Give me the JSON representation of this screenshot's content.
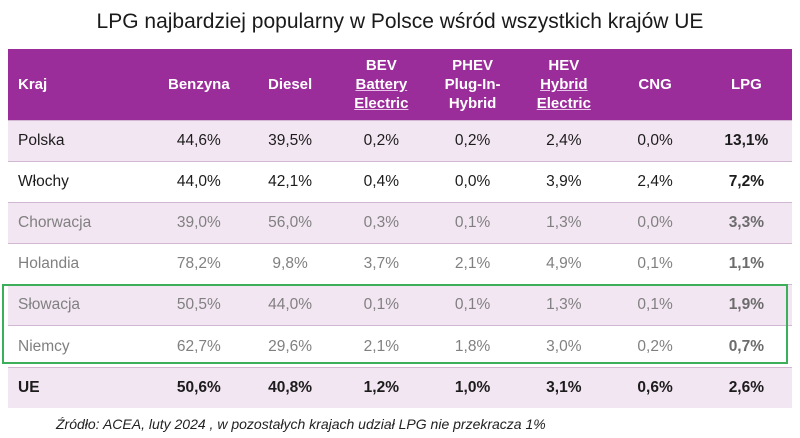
{
  "title": "LPG najbardziej popularny w Polsce wśród wszystkich krajów UE",
  "table": {
    "headers": {
      "kraj": "Kraj",
      "benzyna": "Benzyna",
      "diesel": "Diesel",
      "bev_1": "BEV",
      "bev_2": "Battery",
      "bev_3": "Electric",
      "phev_1": "PHEV",
      "phev_2": "Plug-In-",
      "phev_3": "Hybrid",
      "hev_1": "HEV",
      "hev_2": "Hybrid",
      "hev_3": "Electric",
      "cng": "CNG",
      "lpg": "LPG"
    },
    "rows": [
      {
        "kraj": "Polska",
        "benzyna": "44,6%",
        "diesel": "39,5%",
        "bev": "0,2%",
        "phev": "0,2%",
        "hev": "2,4%",
        "cng": "0,0%",
        "lpg": "13,1%"
      },
      {
        "kraj": "Włochy",
        "benzyna": "44,0%",
        "diesel": "42,1%",
        "bev": "0,4%",
        "phev": "0,0%",
        "hev": "3,9%",
        "cng": "2,4%",
        "lpg": "7,2%"
      },
      {
        "kraj": "Chorwacja",
        "benzyna": "39,0%",
        "diesel": "56,0%",
        "bev": "0,3%",
        "phev": "0,1%",
        "hev": "1,3%",
        "cng": "0,0%",
        "lpg": "3,3%"
      },
      {
        "kraj": "Holandia",
        "benzyna": "78,2%",
        "diesel": "9,8%",
        "bev": "3,7%",
        "phev": "2,1%",
        "hev": "4,9%",
        "cng": "0,1%",
        "lpg": "1,1%"
      },
      {
        "kraj": "Słowacja",
        "benzyna": "50,5%",
        "diesel": "44,0%",
        "bev": "0,1%",
        "phev": "0,1%",
        "hev": "1,3%",
        "cng": "0,1%",
        "lpg": "1,9%"
      },
      {
        "kraj": "Niemcy",
        "benzyna": "62,7%",
        "diesel": "29,6%",
        "bev": "2,1%",
        "phev": "1,8%",
        "hev": "3,0%",
        "cng": "0,2%",
        "lpg": "0,7%"
      },
      {
        "kraj": "UE",
        "benzyna": "50,6%",
        "diesel": "40,8%",
        "bev": "1,2%",
        "phev": "1,0%",
        "hev": "3,1%",
        "cng": "0,6%",
        "lpg": "2,6%"
      }
    ]
  },
  "source": "Źródło: ACEA, luty 2024 , w pozostałych krajach udział LPG nie przekracza 1%",
  "colors": {
    "header_bg": "#9b2d9b",
    "row_tint": "#f3e6f3",
    "highlight_border": "#3dae5a"
  }
}
